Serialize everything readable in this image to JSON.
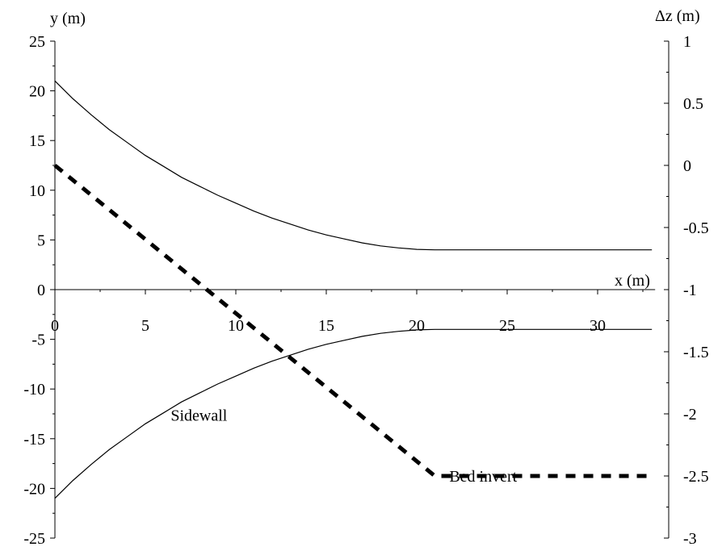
{
  "chart_data": {
    "type": "line",
    "title": "",
    "xlabel": "x (m)",
    "ylabel": "y (m)",
    "y2label": "Δz (m)",
    "xlim": [
      0,
      33
    ],
    "ylim": [
      -25,
      25
    ],
    "y2lim": [
      -3,
      1
    ],
    "x_ticks": [
      0,
      5,
      10,
      15,
      20,
      25,
      30
    ],
    "x_tick_labels": [
      "0",
      "5",
      "10",
      "15",
      "20",
      "25",
      "30"
    ],
    "y_ticks": [
      25,
      20,
      15,
      10,
      5,
      0,
      -5,
      -10,
      -15,
      -20,
      -25
    ],
    "y_tick_labels": [
      "25",
      "20",
      "15",
      "10",
      "5",
      "0",
      "-5",
      "-10",
      "-15",
      "-20",
      "-25"
    ],
    "y2_ticks": [
      1,
      0.5,
      0,
      -0.5,
      -1,
      -1.5,
      -2,
      -2.5,
      -3
    ],
    "y2_tick_labels": [
      "1",
      "0.5",
      "0",
      "-0.5",
      "-1",
      "-1.5",
      "-2",
      "-2.5",
      "-3"
    ],
    "grid": false,
    "series": [
      {
        "axis": "y",
        "style": "solid",
        "x": [
          0,
          1,
          2,
          3,
          4,
          5,
          6,
          7,
          8,
          9,
          10,
          11,
          12,
          13,
          14,
          15,
          16,
          17,
          18,
          19,
          20,
          21,
          33
        ],
        "y": [
          21,
          19.2,
          17.6,
          16.1,
          14.8,
          13.5,
          12.4,
          11.3,
          10.4,
          9.5,
          8.7,
          7.9,
          7.2,
          6.6,
          6.0,
          5.5,
          5.1,
          4.7,
          4.4,
          4.2,
          4.05,
          4.0,
          4.0
        ]
      },
      {
        "axis": "y",
        "style": "solid",
        "x": [
          0,
          1,
          2,
          3,
          4,
          5,
          6,
          7,
          8,
          9,
          10,
          11,
          12,
          13,
          14,
          15,
          16,
          17,
          18,
          19,
          20,
          21,
          33
        ],
        "y": [
          -21,
          -19.2,
          -17.6,
          -16.1,
          -14.8,
          -13.5,
          -12.4,
          -11.3,
          -10.4,
          -9.5,
          -8.7,
          -7.9,
          -7.2,
          -6.6,
          -6.0,
          -5.5,
          -5.1,
          -4.7,
          -4.4,
          -4.2,
          -4.05,
          -4.0,
          -4.0
        ]
      },
      {
        "axis": "y2",
        "style": "dashed",
        "x": [
          0,
          21,
          33
        ],
        "y": [
          0,
          -2.5,
          -2.5
        ]
      }
    ],
    "annotations": [
      {
        "text": "Sidewall",
        "x": 6.4,
        "y": -13.2
      },
      {
        "text": "Bed invert",
        "x": 21.8,
        "y": -19.3
      }
    ]
  }
}
